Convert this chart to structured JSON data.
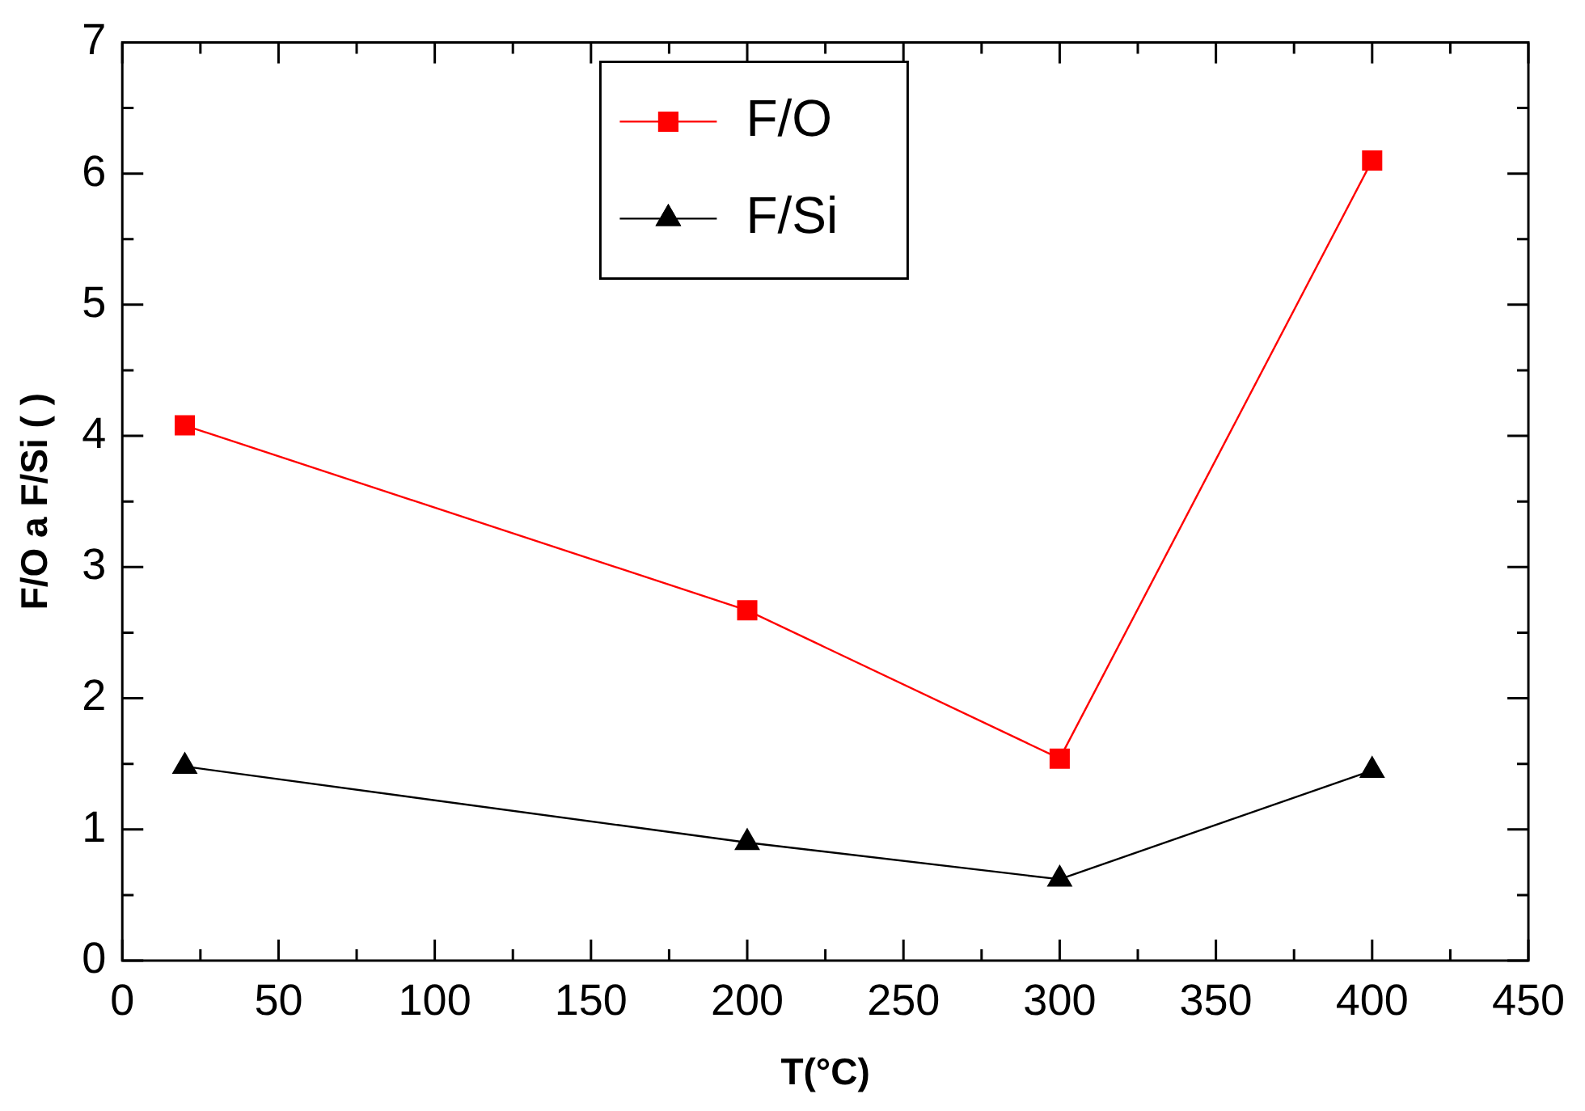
{
  "chart_data": {
    "type": "line",
    "xlabel": "T(°C)",
    "ylabel": "F/O a F/Si ( )",
    "x": [
      20,
      200,
      300,
      400
    ],
    "series": [
      {
        "name": "F/O",
        "color": "#ff0000",
        "values": [
          4.08,
          2.67,
          1.54,
          6.1
        ],
        "marker": "square"
      },
      {
        "name": "F/Si",
        "color": "#000000",
        "values": [
          1.48,
          0.9,
          0.62,
          1.45
        ],
        "marker": "triangle"
      }
    ],
    "xlim": [
      0,
      450
    ],
    "xticks": [
      0,
      {
        "value": 25,
        "label": null
      },
      50,
      {
        "value": 75,
        "label": null
      },
      100,
      {
        "value": 125,
        "label": null
      },
      150,
      {
        "value": 175,
        "label": null
      },
      200,
      {
        "value": 225,
        "label": null
      },
      250,
      {
        "value": 275,
        "label": null
      },
      300,
      {
        "value": 325,
        "label": null
      },
      350,
      {
        "value": 375,
        "label": null
      },
      400,
      {
        "value": 425,
        "label": null
      },
      450
    ],
    "ylim": [
      0,
      7
    ],
    "yticks": [
      0,
      {
        "value": 0.5,
        "label": null
      },
      1,
      {
        "value": 1.5,
        "label": null
      },
      2,
      {
        "value": 2.5,
        "label": null
      },
      3,
      {
        "value": 3.5,
        "label": null
      },
      4,
      {
        "value": 4.5,
        "label": null
      },
      5,
      {
        "value": 5.5,
        "label": null
      },
      6,
      {
        "value": 6.5,
        "label": null
      },
      7
    ],
    "grid": false,
    "legend": "top",
    "line_style": "solid"
  }
}
